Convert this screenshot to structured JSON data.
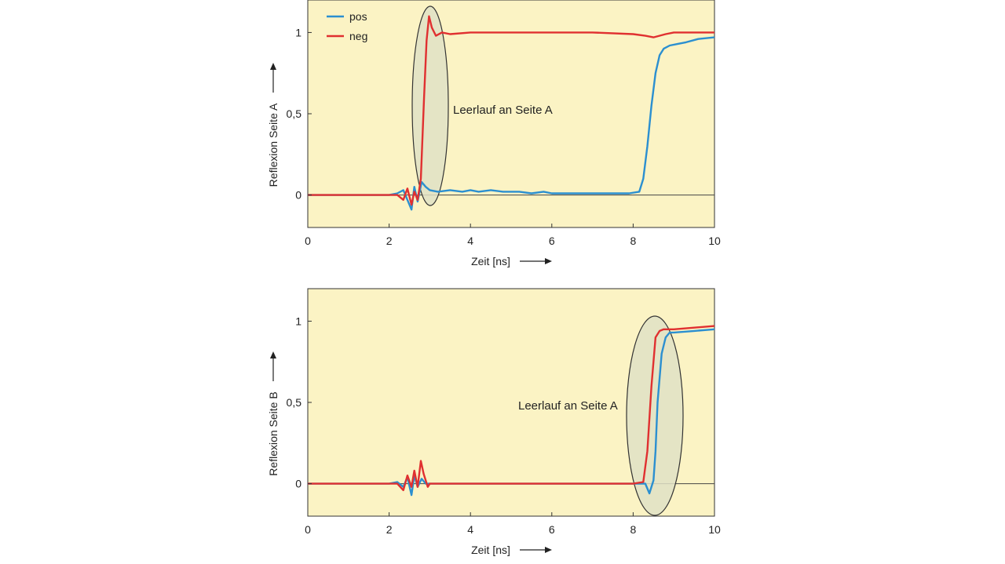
{
  "chart_data": [
    {
      "type": "line",
      "id": "top",
      "xlabel": "Zeit [ns]",
      "ylabel": "Reflexion Seite A",
      "xlim": [
        0,
        10
      ],
      "ylim": [
        -0.2,
        1.2
      ],
      "xticks": [
        "0",
        "2",
        "4",
        "6",
        "8",
        "10"
      ],
      "yticks": [
        {
          "value": 0,
          "label": "0"
        },
        {
          "value": 0.5,
          "label": "0,5"
        },
        {
          "value": 1,
          "label": "1"
        }
      ],
      "legend": {
        "placement": "top-left",
        "entries": [
          "pos",
          "neg"
        ]
      },
      "annotation": {
        "text": "Leerlauf an Seite A",
        "x": 3.0,
        "y": 0.6
      },
      "series": [
        {
          "name": "pos",
          "color": "#2b8fd0",
          "x": [
            0,
            0.5,
            1,
            1.5,
            2,
            2.2,
            2.35,
            2.45,
            2.55,
            2.62,
            2.7,
            2.8,
            2.9,
            3.0,
            3.2,
            3.5,
            3.8,
            4.0,
            4.2,
            4.5,
            4.8,
            5.0,
            5.2,
            5.5,
            5.8,
            6.0,
            6.5,
            7.0,
            7.5,
            7.9,
            8.15,
            8.25,
            8.35,
            8.45,
            8.55,
            8.65,
            8.75,
            8.9,
            9.1,
            9.3,
            9.6,
            10
          ],
          "y": [
            0.0,
            0.0,
            0.0,
            0.0,
            0.0,
            0.01,
            0.03,
            -0.03,
            -0.09,
            0.05,
            -0.04,
            0.08,
            0.05,
            0.03,
            0.02,
            0.03,
            0.02,
            0.03,
            0.02,
            0.03,
            0.02,
            0.02,
            0.02,
            0.01,
            0.02,
            0.01,
            0.01,
            0.01,
            0.01,
            0.01,
            0.02,
            0.1,
            0.3,
            0.55,
            0.75,
            0.86,
            0.9,
            0.92,
            0.93,
            0.94,
            0.96,
            0.97
          ]
        },
        {
          "name": "neg",
          "color": "#e03030",
          "x": [
            0,
            0.5,
            1,
            1.5,
            2,
            2.2,
            2.35,
            2.45,
            2.55,
            2.62,
            2.7,
            2.78,
            2.86,
            2.92,
            2.98,
            3.05,
            3.15,
            3.3,
            3.5,
            4.0,
            5.0,
            6.0,
            7.0,
            8.0,
            8.3,
            8.5,
            8.8,
            9.0,
            9.5,
            10
          ],
          "y": [
            0.0,
            0.0,
            0.0,
            0.0,
            0.0,
            0.0,
            -0.03,
            0.04,
            -0.06,
            0.02,
            -0.03,
            0.1,
            0.6,
            0.95,
            1.1,
            1.03,
            0.98,
            1.0,
            0.99,
            1.0,
            1.0,
            1.0,
            1.0,
            0.99,
            0.98,
            0.97,
            0.99,
            1.0,
            1.0,
            1.0
          ]
        }
      ]
    },
    {
      "type": "line",
      "id": "bottom",
      "xlabel": "Zeit [ns]",
      "ylabel": "Reflexion Seite B",
      "xlim": [
        0,
        10
      ],
      "ylim": [
        -0.2,
        1.2
      ],
      "xticks": [
        "0",
        "2",
        "4",
        "6",
        "8",
        "10"
      ],
      "yticks": [
        {
          "value": 0,
          "label": "0"
        },
        {
          "value": 0.5,
          "label": "0,5"
        },
        {
          "value": 1,
          "label": "1"
        }
      ],
      "annotation": {
        "text": "Leerlauf an Seite A",
        "x": 8.5,
        "y": 0.5
      },
      "series": [
        {
          "name": "pos",
          "color": "#2b8fd0",
          "x": [
            0,
            0.5,
            1,
            1.5,
            2,
            2.2,
            2.35,
            2.45,
            2.55,
            2.62,
            2.7,
            2.8,
            2.9,
            3.0,
            3.5,
            4.0,
            5.0,
            6.0,
            7.0,
            8.0,
            8.3,
            8.4,
            8.5,
            8.55,
            8.6,
            8.7,
            8.8,
            8.9,
            9.0,
            9.5,
            10
          ],
          "y": [
            0.0,
            0.0,
            0.0,
            0.0,
            0.0,
            0.01,
            -0.02,
            0.04,
            -0.07,
            0.05,
            -0.02,
            0.03,
            0.0,
            0.0,
            0.0,
            0.0,
            0.0,
            0.0,
            0.0,
            0.0,
            0.0,
            -0.06,
            0.02,
            0.2,
            0.5,
            0.8,
            0.9,
            0.93,
            0.93,
            0.94,
            0.95
          ]
        },
        {
          "name": "neg",
          "color": "#e03030",
          "x": [
            0,
            0.5,
            1,
            1.5,
            2,
            2.2,
            2.35,
            2.45,
            2.55,
            2.62,
            2.7,
            2.78,
            2.85,
            2.95,
            3.0,
            3.5,
            4.0,
            5.0,
            6.0,
            7.0,
            8.0,
            8.25,
            8.35,
            8.45,
            8.55,
            8.65,
            8.75,
            9.0,
            9.5,
            10
          ],
          "y": [
            0.0,
            0.0,
            0.0,
            0.0,
            0.0,
            0.0,
            -0.04,
            0.05,
            -0.02,
            0.08,
            -0.02,
            0.14,
            0.06,
            -0.02,
            0.0,
            0.0,
            0.0,
            0.0,
            0.0,
            0.0,
            0.0,
            0.01,
            0.2,
            0.6,
            0.9,
            0.94,
            0.95,
            0.95,
            0.96,
            0.97
          ]
        }
      ]
    }
  ]
}
